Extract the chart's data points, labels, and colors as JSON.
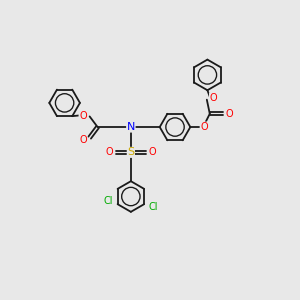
{
  "bg": "#e8e8e8",
  "bond_color": "#1a1a1a",
  "bond_lw": 1.3,
  "atom_colors": {
    "N": "#0000ff",
    "O": "#ff0000",
    "S": "#ccaa00",
    "Cl": "#00aa00"
  },
  "ring_r": 0.52,
  "fs": 7.0,
  "xlim": [
    0,
    10
  ],
  "ylim": [
    0,
    10
  ]
}
